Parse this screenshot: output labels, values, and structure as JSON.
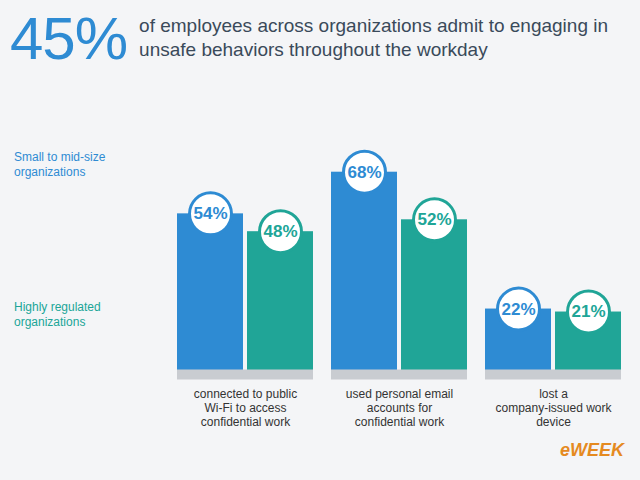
{
  "chart_data": {
    "type": "bar",
    "title": "45% of employees across organizations admit to engaging in unsafe behaviors throughout the workday",
    "categories": [
      "connected to public Wi-Fi to access confidential work",
      "used personal email accounts for confidential work",
      "lost a company-issued work device"
    ],
    "series": [
      {
        "name": "Small to mid-size organizations",
        "color": "#2e8bd3",
        "values": [
          54,
          68,
          22
        ],
        "value_labels": [
          "54%",
          "68%",
          "22%"
        ]
      },
      {
        "name": "Highly regulated organizations",
        "color": "#20a597",
        "values": [
          48,
          52,
          21
        ],
        "value_labels": [
          "48%",
          "52%",
          "21%"
        ]
      }
    ],
    "ylim": [
      0,
      80
    ],
    "yticks": [],
    "data_labels": true,
    "tick_labels": "x",
    "legend": "left",
    "caption": "eWEEK"
  }
}
